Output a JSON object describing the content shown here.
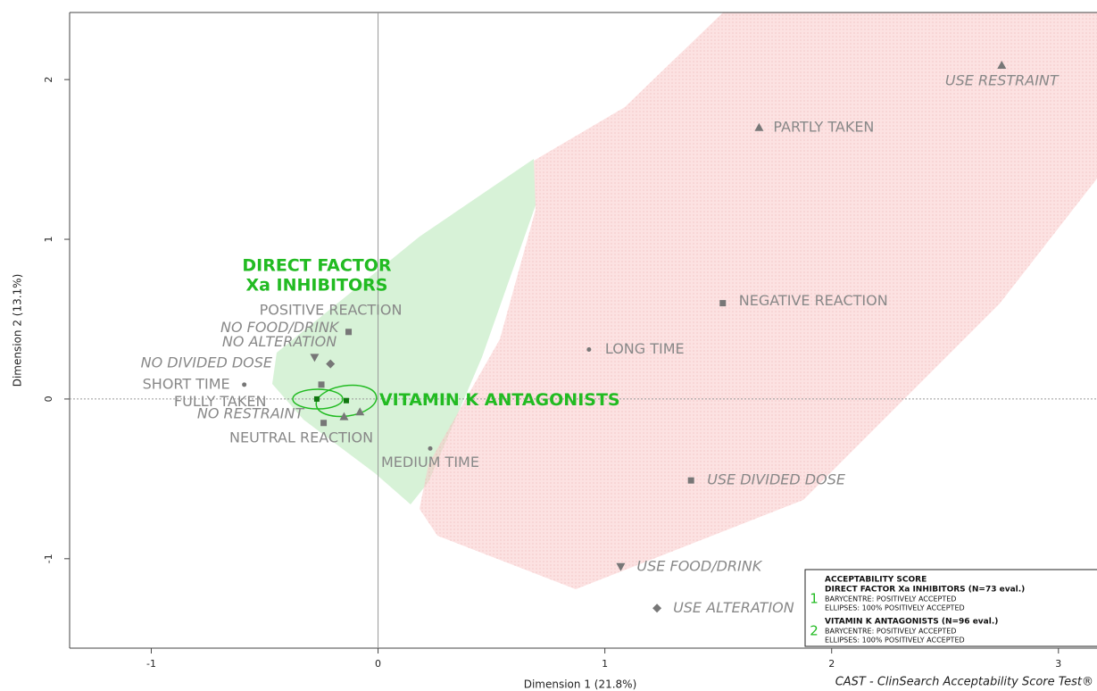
{
  "chart_data": {
    "type": "scatter",
    "xlabel": "Dimension 1 (21.8%)",
    "ylabel": "Dimension 2 (13.1%)",
    "xlim": [
      -1.36,
      3.17
    ],
    "ylim": [
      -1.56,
      2.42
    ],
    "xticks": [
      -1,
      0,
      1,
      2,
      3
    ],
    "yticks": [
      -1,
      0,
      1,
      2
    ],
    "point_color": "#777777",
    "label_color": "#888888",
    "labels": [
      "USE RESTRAINT",
      "PARTLY TAKEN",
      "NEGATIVE REACTION",
      "LONG TIME",
      "USE DIVIDED DOSE",
      "MEDIUM TIME",
      "USE FOOD/DRINK",
      "USE ALTERATION",
      "POSITIVE REACTION",
      "NO FOOD/DRINK",
      "NO ALTERATION",
      "NO DIVIDED DOSE",
      "SHORT TIME",
      "FULLY TAKEN",
      "NO RESTRAINT",
      "NEUTRAL REACTION"
    ],
    "x": [
      2.75,
      1.68,
      1.52,
      0.93,
      1.38,
      0.23,
      1.07,
      1.23,
      -0.13,
      -0.28,
      -0.21,
      -0.25,
      -0.59,
      -0.15,
      -0.08,
      -0.24
    ],
    "y": [
      2.09,
      1.7,
      0.6,
      0.31,
      -0.51,
      -0.31,
      -1.05,
      -1.31,
      0.42,
      0.26,
      0.22,
      0.09,
      0.09,
      -0.11,
      -0.08,
      -0.15
    ],
    "markers": [
      "triangle",
      "triangle",
      "square",
      "dot",
      "square",
      "dot",
      "down-triangle",
      "diamond",
      "square",
      "down-triangle",
      "diamond",
      "square",
      "dot",
      "triangle",
      "triangle",
      "square"
    ],
    "italic": [
      true,
      false,
      false,
      false,
      true,
      false,
      true,
      true,
      false,
      true,
      true,
      true,
      false,
      false,
      true,
      false
    ],
    "groups": [
      {
        "name": [
          "DIRECT FACTOR",
          "Xa INHIBITORS"
        ],
        "x": -0.27,
        "y": 0.0,
        "color": "#22bb22"
      },
      {
        "name": [
          "VITAMIN K ANTAGONISTS"
        ],
        "x": -0.14,
        "y": -0.01,
        "color": "#22bb22"
      }
    ],
    "legend": {
      "title": "ACCEPTABILITY SCORE",
      "entries": [
        {
          "number": "1",
          "name": "DIRECT FACTOR Xa INHIBITORS (N=73 eval.)",
          "lines": [
            "BARYCENTRE: POSITIVELY ACCEPTED",
            "ELLIPSES: 100% POSITIVELY ACCEPTED"
          ]
        },
        {
          "number": "2",
          "name": "VITAMIN K ANTAGONISTS (N=96 eval.)",
          "lines": [
            "BARYCENTRE: POSITIVELY ACCEPTED",
            "ELLIPSES: 100% POSITIVELY ACCEPTED"
          ]
        }
      ]
    },
    "footer": "CAST - ClinSearch Acceptability Score Test®"
  }
}
